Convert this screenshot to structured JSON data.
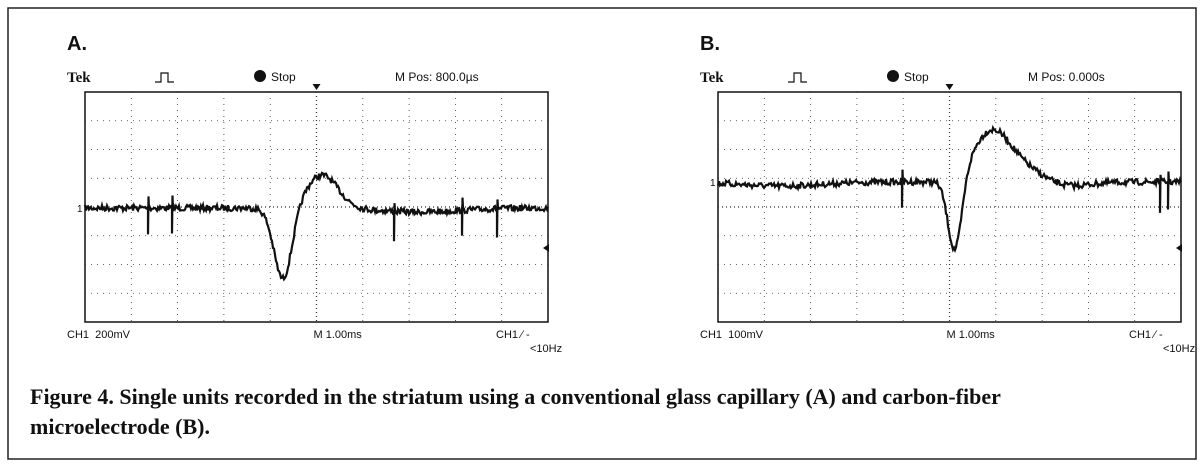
{
  "panels": [
    {
      "label": "A.",
      "brand": "Tek",
      "state": "Stop",
      "position": "M Pos: 800.0µs",
      "marker": "1",
      "channel": "CH1  200mV",
      "timebase": "M 1.00ms",
      "trigger": "CH1 ∕ -",
      "filter": "<10Hz"
    },
    {
      "label": "B.",
      "brand": "Tek",
      "state": "Stop",
      "position": "M Pos: 0.000s",
      "marker": "1",
      "channel": "CH1  100mV",
      "timebase": "M 1.00ms",
      "trigger": "CH1 ∕ -",
      "filter": "<10Hz"
    }
  ],
  "caption": "Figure 4. Single units recorded in the striatum using a conventional glass capillary (A) and carbon-fiber microelectrode (B)."
}
